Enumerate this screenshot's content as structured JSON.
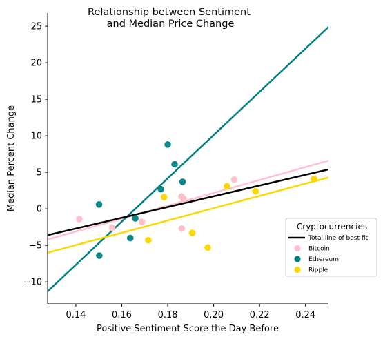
{
  "chart_data": {
    "type": "scatter",
    "title_lines": [
      "Relationship between Sentiment",
      "and Median Price Change"
    ],
    "xlabel": "Positive Sentiment Score the Day Before",
    "ylabel": "Median Percent Change",
    "xlim": [
      0.1277,
      0.25
    ],
    "ylim": [
      -13.0,
      26.8
    ],
    "xticks": [
      {
        "v": 0.14,
        "label": "0.14"
      },
      {
        "v": 0.16,
        "label": "0.16"
      },
      {
        "v": 0.18,
        "label": "0.18"
      },
      {
        "v": 0.2,
        "label": "0.20"
      },
      {
        "v": 0.22,
        "label": "0.22"
      },
      {
        "v": 0.24,
        "label": "0.24"
      }
    ],
    "yticks": [
      {
        "v": -10,
        "label": "−10"
      },
      {
        "v": -5,
        "label": "−5"
      },
      {
        "v": 0,
        "label": "0"
      },
      {
        "v": 5,
        "label": "5"
      },
      {
        "v": 10,
        "label": "10"
      },
      {
        "v": 15,
        "label": "15"
      },
      {
        "v": 20,
        "label": "20"
      },
      {
        "v": 25,
        "label": "25"
      }
    ],
    "grid": false,
    "legend": {
      "title": "Cryptocurrencies",
      "placement": "right",
      "entries": [
        {
          "label": "Total line of best fit",
          "kind": "line",
          "color": "#000000"
        },
        {
          "label": "Bitcoin",
          "kind": "marker",
          "color": "#ffc0cb"
        },
        {
          "label": "Ethereum",
          "kind": "marker",
          "color": "#008080"
        },
        {
          "label": "Ripple",
          "kind": "marker",
          "color": "#ffd700"
        }
      ]
    },
    "lines": [
      {
        "name": "Bitcoin fit",
        "color": "#ffc0cb",
        "x": [
          0.1277,
          0.25
        ],
        "y": [
          -4.2,
          6.6
        ]
      },
      {
        "name": "Ethereum fit",
        "color": "#008080",
        "x": [
          0.1277,
          0.25
        ],
        "y": [
          -11.3,
          24.9
        ]
      },
      {
        "name": "Ripple fit",
        "color": "#ffd700",
        "x": [
          0.1277,
          0.25
        ],
        "y": [
          -6.0,
          4.3
        ]
      },
      {
        "name": "Total line of best fit",
        "color": "#000000",
        "x": [
          0.1277,
          0.25
        ],
        "y": [
          -3.6,
          5.4
        ]
      }
    ],
    "series": [
      {
        "name": "Bitcoin",
        "color": "#ffc0cb",
        "points": [
          [
            0.1415,
            -1.4
          ],
          [
            0.1558,
            -2.6
          ],
          [
            0.1688,
            -1.8
          ],
          [
            0.186,
            1.7
          ],
          [
            0.1868,
            1.4
          ],
          [
            0.1861,
            -2.7
          ],
          [
            0.209,
            4.0
          ]
        ]
      },
      {
        "name": "Ethereum",
        "color": "#008080",
        "points": [
          [
            0.1501,
            0.6
          ],
          [
            0.1502,
            -6.4
          ],
          [
            0.1637,
            -4.0
          ],
          [
            0.1659,
            -1.3
          ],
          [
            0.177,
            2.7
          ],
          [
            0.18,
            8.8
          ],
          [
            0.183,
            6.1
          ],
          [
            0.1865,
            3.7
          ]
        ]
      },
      {
        "name": "Ripple",
        "color": "#ffd700",
        "points": [
          [
            0.1715,
            -4.3
          ],
          [
            0.1784,
            1.6
          ],
          [
            0.1907,
            -3.3
          ],
          [
            0.1974,
            -5.3
          ],
          [
            0.2058,
            3.1
          ],
          [
            0.2183,
            2.4
          ],
          [
            0.2437,
            4.1
          ]
        ]
      }
    ]
  }
}
